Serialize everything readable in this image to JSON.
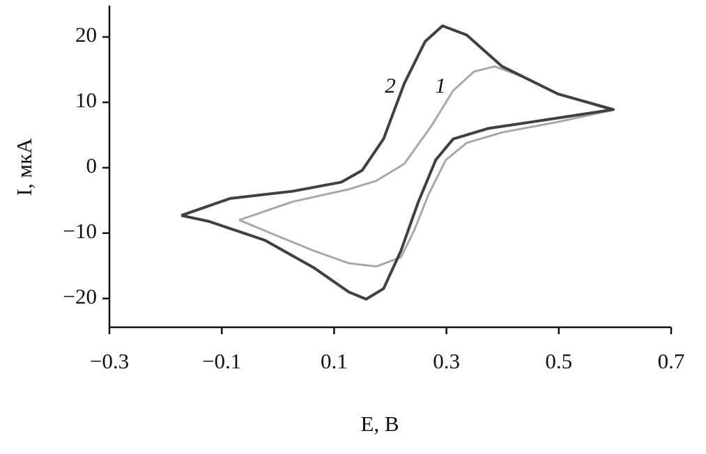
{
  "chart_data": {
    "type": "line",
    "x_label": "E, В",
    "y_label": "I, мкА",
    "annotations": [
      "1",
      "2"
    ],
    "xlim": [
      -0.3,
      0.7
    ],
    "xticks": [
      {
        "value": -0.3,
        "label": "−0.3"
      },
      {
        "value": -0.1,
        "label": "−0.1"
      },
      0.1,
      0.3,
      0.5,
      0.7
    ],
    "ylim": [
      -24.4,
      24.8
    ],
    "yticks": [
      {
        "value": -20,
        "label": "−20"
      },
      {
        "value": -10,
        "label": "−10"
      },
      0,
      10,
      20
    ],
    "series": [
      {
        "name": "1",
        "color": "#a8a8a8",
        "x": [
          -0.069,
          0.026,
          0.126,
          0.175,
          0.225,
          0.274,
          0.312,
          0.349,
          0.386,
          0.436,
          0.498,
          0.595,
          0.498,
          0.399,
          0.336,
          0.299,
          0.268,
          0.243,
          0.219,
          0.175,
          0.126,
          0.064,
          0.001,
          -0.069
        ],
        "values": [
          -8.0,
          -5.2,
          -3.3,
          -2.0,
          0.6,
          6.5,
          11.8,
          14.7,
          15.5,
          13.9,
          11.3,
          8.8,
          7.0,
          5.4,
          3.8,
          1.2,
          -4.1,
          -9.5,
          -13.7,
          -15.1,
          -14.6,
          -12.7,
          -10.5,
          -8.0
        ]
      },
      {
        "name": "2",
        "color": "#404040",
        "x": [
          -0.172,
          -0.085,
          0.026,
          0.113,
          0.15,
          0.188,
          0.225,
          0.262,
          0.293,
          0.336,
          0.399,
          0.498,
          0.597,
          0.498,
          0.374,
          0.312,
          0.281,
          0.25,
          0.219,
          0.188,
          0.157,
          0.126,
          0.064,
          -0.023,
          -0.123,
          -0.172
        ],
        "values": [
          -7.3,
          -4.7,
          -3.6,
          -2.2,
          -0.4,
          4.4,
          12.9,
          19.3,
          21.7,
          20.3,
          15.5,
          11.3,
          8.9,
          7.6,
          6.0,
          4.4,
          1.2,
          -5.2,
          -12.7,
          -18.5,
          -20.1,
          -19.0,
          -15.3,
          -11.1,
          -8.2,
          -7.3
        ]
      }
    ]
  }
}
